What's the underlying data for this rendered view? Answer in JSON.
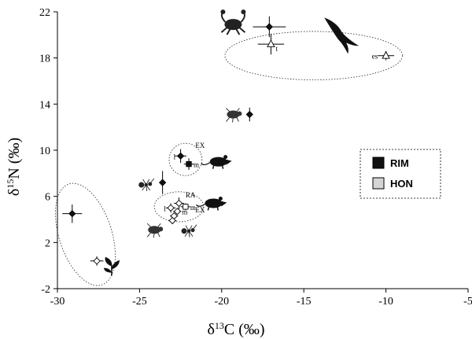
{
  "chart_data": {
    "type": "scatter",
    "title": "",
    "xlabel": "δ13C (‰)",
    "ylabel": "δ15N (‰)",
    "xlim": [
      -30,
      -5
    ],
    "ylim": [
      -2,
      22
    ],
    "x_ticks": [
      -30,
      -25,
      -20,
      -15,
      -10,
      -5
    ],
    "y_ticks": [
      -2,
      2,
      6,
      10,
      14,
      18,
      22
    ],
    "x_tick_labels": [
      "-30",
      "-25",
      "-20",
      "-15",
      "-10",
      "-5"
    ],
    "y_tick_labels": [
      "-2",
      "2",
      "6",
      "10",
      "14",
      "18",
      "22"
    ],
    "grid": false,
    "legend_position": "middle-right",
    "legend": [
      {
        "label": "RIM",
        "color": "#111111"
      },
      {
        "label": "HON",
        "color": "#d4d4d4"
      }
    ],
    "series": [
      {
        "name": "RIM",
        "color": "#111111",
        "points": [
          {
            "x": -17.1,
            "y": 20.7,
            "xerr": 1.0,
            "yerr": 0.9,
            "marker": "diamond"
          },
          {
            "x": -18.3,
            "y": 13.1,
            "xerr": 0,
            "yerr": 0.6,
            "marker": "diamond"
          },
          {
            "x": -22.5,
            "y": 9.5,
            "xerr": 0.35,
            "yerr": 0.6,
            "marker": "diamond",
            "label": "l"
          },
          {
            "x": -22.0,
            "y": 8.8,
            "xerr": 0.3,
            "yerr": 0.5,
            "marker": "square",
            "label": "m"
          },
          {
            "x": -23.6,
            "y": 7.2,
            "xerr": 0,
            "yerr": 1.0,
            "marker": "diamond"
          },
          {
            "x": -29.1,
            "y": 4.5,
            "xerr": 0.6,
            "yerr": 0.8,
            "marker": "diamond"
          }
        ]
      },
      {
        "name": "HON",
        "color": "#ffffff",
        "points": [
          {
            "x": -17.0,
            "y": 19.2,
            "xerr": 0.8,
            "yerr": 0.9,
            "marker": "triangle",
            "label": "t"
          },
          {
            "x": -10.0,
            "y": 18.2,
            "xerr": 0.5,
            "yerr": 0.4,
            "marker": "triangle",
            "label": "es"
          },
          {
            "x": -22.6,
            "y": 5.4,
            "xerr": 0.3,
            "yerr": 0.5,
            "marker": "diamond",
            "label": "RA"
          },
          {
            "x": -23.1,
            "y": 5.0,
            "xerr": 0.3,
            "yerr": 0.4,
            "marker": "diamond",
            "label": "l"
          },
          {
            "x": -22.2,
            "y": 5.1,
            "xerr": 0.3,
            "yerr": 0.3,
            "marker": "square",
            "label": "m"
          },
          {
            "x": -22.7,
            "y": 4.7,
            "xerr": 0.25,
            "yerr": 0.3,
            "marker": "diamond",
            "label": "m"
          },
          {
            "x": -22.9,
            "y": 4.3,
            "xerr": 0.25,
            "yerr": 0.3,
            "marker": "diamond"
          },
          {
            "x": -23.0,
            "y": 3.9,
            "xerr": 0.25,
            "yerr": 0.3,
            "marker": "diamond"
          },
          {
            "x": -27.6,
            "y": 0.4,
            "xerr": 0.4,
            "yerr": 0.4,
            "marker": "diamond"
          }
        ]
      }
    ],
    "annotations": [
      {
        "text": "EX",
        "x": -21.6,
        "y": 10.2
      },
      {
        "text": "EX",
        "x": -21.6,
        "y": 4.6
      },
      {
        "text": "RA",
        "x": -22.2,
        "y": 5.9
      }
    ],
    "groupings": [
      {
        "type": "ellipse",
        "cx": -14.4,
        "cy": 18.2,
        "rx": 5.4,
        "ry": 2.1
      },
      {
        "type": "ellipse",
        "cx": -22.2,
        "cy": 9.2,
        "rx": 1.0,
        "ry": 1.4
      },
      {
        "type": "ellipse",
        "cx": -22.6,
        "cy": 5.1,
        "rx": 1.5,
        "ry": 1.3
      },
      {
        "type": "ellipse",
        "cx": -28.3,
        "cy": 2.7,
        "rx": 1.6,
        "ry": 4.6,
        "rotate": -18
      }
    ],
    "silhouettes": [
      {
        "icon": "crab-icon",
        "x": -19.3,
        "y": 20.9
      },
      {
        "icon": "seabird-icon",
        "x": -12.7,
        "y": 20.0
      },
      {
        "icon": "beetle-icon",
        "x": -19.3,
        "y": 13.1
      },
      {
        "icon": "rat-icon",
        "x": -20.2,
        "y": 9.0
      },
      {
        "icon": "ant-icon",
        "x": -24.6,
        "y": 7.0
      },
      {
        "icon": "rat-icon",
        "x": -20.5,
        "y": 5.4
      },
      {
        "icon": "beetle-icon",
        "x": -24.1,
        "y": 3.1
      },
      {
        "icon": "ant-icon",
        "x": -22.0,
        "y": 3.0
      },
      {
        "icon": "plant-icon",
        "x": -26.7,
        "y": -0.2
      }
    ]
  }
}
